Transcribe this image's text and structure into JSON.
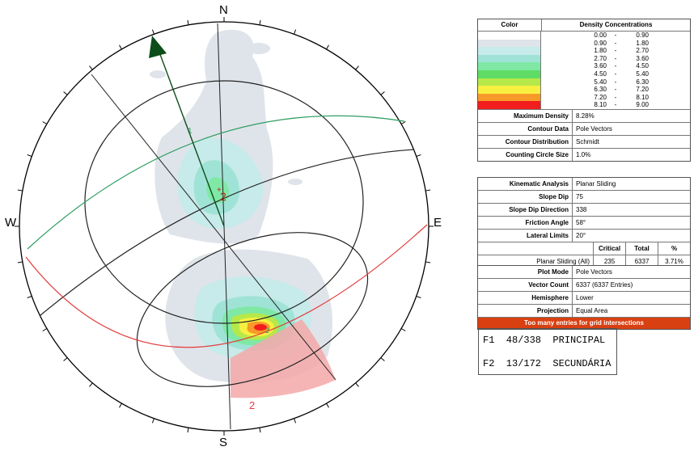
{
  "stereonet": {
    "north": "N",
    "south": "S",
    "east": "E",
    "west": "W",
    "pole_label_1": "1",
    "pole_label_2": "2",
    "pole_label_2b": "2",
    "circle_label_2": "2",
    "hemisphere": "Lower",
    "projection": "Equal Area",
    "planes": [
      {
        "id": "F1",
        "dip": 48,
        "dip_direction": 338,
        "color": "#2f9e63"
      },
      {
        "id": "F2",
        "dip": 13,
        "dip_direction": 172,
        "color": "#e23b3b"
      }
    ],
    "slope": {
      "dip": 75,
      "dip_direction": 338
    },
    "friction_angle": 58,
    "lateral_limits": 20,
    "colors": {
      "arrow": "#0d4d1a",
      "critical_zone": "#f4a8a8",
      "friction_cone": "#222222"
    }
  },
  "legend": {
    "header_color": "Color",
    "header_density": "Density Concentrations",
    "items": [
      {
        "lo": "0.00",
        "hi": "0.90",
        "color": "#ffffff"
      },
      {
        "lo": "0.90",
        "hi": "1.80",
        "color": "#dfe4ea"
      },
      {
        "lo": "1.80",
        "hi": "2.70",
        "color": "#c7eaea"
      },
      {
        "lo": "2.70",
        "hi": "3.60",
        "color": "#9fe3d6"
      },
      {
        "lo": "3.60",
        "hi": "4.50",
        "color": "#7fe8a5"
      },
      {
        "lo": "4.50",
        "hi": "5.40",
        "color": "#5edc66"
      },
      {
        "lo": "5.40",
        "hi": "6.30",
        "color": "#b6e84a"
      },
      {
        "lo": "6.30",
        "hi": "7.20",
        "color": "#f8f040"
      },
      {
        "lo": "7.20",
        "hi": "8.10",
        "color": "#f79a2a"
      },
      {
        "lo": "8.10",
        "hi": "9.00",
        "color": "#f21d1d"
      }
    ],
    "dash": "-"
  },
  "contour_info": [
    {
      "label": "Maximum Density",
      "value": "8.28%"
    },
    {
      "label": "Contour Data",
      "value": "Pole Vectors"
    },
    {
      "label": "Contour Distribution",
      "value": "Schmidt"
    },
    {
      "label": "Counting Circle Size",
      "value": "1.0%"
    }
  ],
  "kinematic": [
    {
      "label": "Kinematic Analysis",
      "value": "Planar Sliding"
    },
    {
      "label": "Slope Dip",
      "value": "75"
    },
    {
      "label": "Slope Dip Direction",
      "value": "338"
    },
    {
      "label": "Friction Angle",
      "value": "58°"
    },
    {
      "label": "Lateral Limits",
      "value": "20°"
    }
  ],
  "critical_table": {
    "headers": [
      "",
      "Critical",
      "Total",
      "%"
    ],
    "row": [
      "Planar Sliding (All)",
      "235",
      "6337",
      "3.71%"
    ]
  },
  "plot_info": [
    {
      "label": "Plot Mode",
      "value": "Pole Vectors"
    },
    {
      "label": "Vector Count",
      "value": "6337 (6337 Entries)"
    },
    {
      "label": "Hemisphere",
      "value": "Lower"
    },
    {
      "label": "Projection",
      "value": "Equal Area"
    }
  ],
  "warning": "Too many entries for grid intersections",
  "sets": [
    "F1  48/338  PRINCIPAL",
    "F2  13/172  SECUNDÁRIA"
  ]
}
